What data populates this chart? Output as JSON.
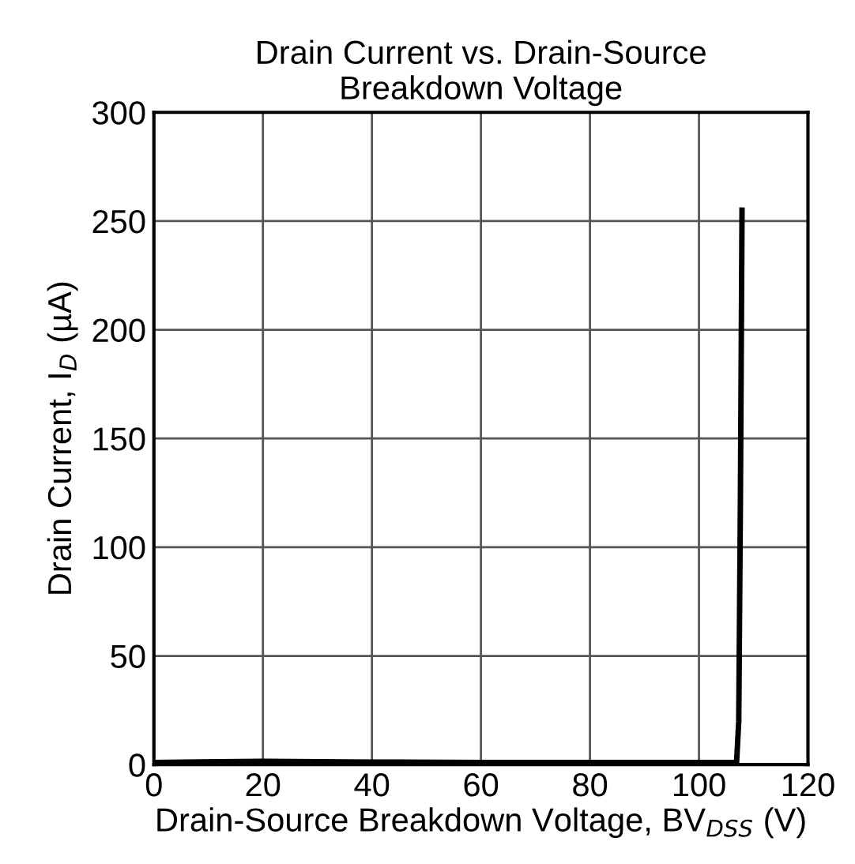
{
  "chart_data": {
    "type": "line",
    "title": "Drain Current vs. Drain-Source\nBreakdown Voltage",
    "xlabel": "Drain-Source Breakdown Voltage, BV$_{DSS}$ (V)",
    "ylabel": "Drain Current, I$_{D}$ (µA)",
    "series": [
      {
        "color": "#000000",
        "x": [
          0,
          20,
          40,
          60,
          80,
          100,
          106.9,
          107.3,
          107.6,
          107.9
        ],
        "values": [
          1,
          1.5,
          1.2,
          1,
          1,
          1,
          1,
          20,
          120,
          255
        ]
      }
    ],
    "xlim": [
      0,
      120
    ],
    "xticks": [
      0,
      20,
      40,
      60,
      80,
      100,
      120
    ],
    "ylim": [
      0,
      300
    ],
    "yticks": [
      0,
      50,
      100,
      150,
      200,
      250,
      300
    ],
    "grid": true,
    "line_style": "solid",
    "marker": "none",
    "legend": false
  }
}
